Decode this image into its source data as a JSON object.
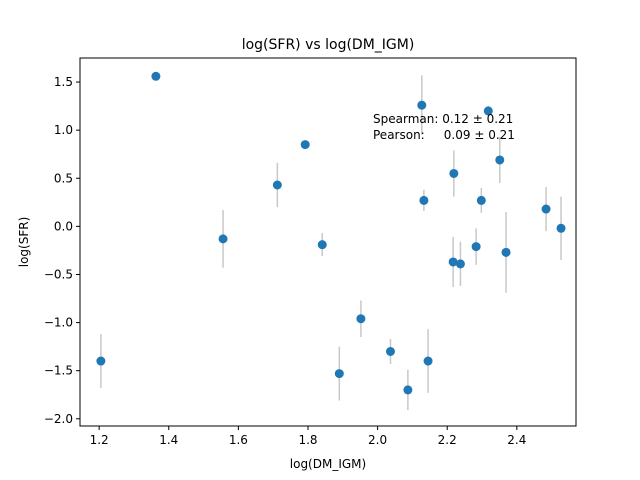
{
  "chart_data": {
    "type": "scatter",
    "title": "log(SFR) vs log(DM_IGM)",
    "xlabel": "log(DM_IGM)",
    "ylabel": "log(SFR)",
    "xlim": [
      1.145,
      2.57
    ],
    "ylim": [
      -2.075,
      1.75
    ],
    "xticks": [
      1.2,
      1.4,
      1.6,
      1.8,
      2.0,
      2.2,
      2.4
    ],
    "xtick_labels": [
      "1.2",
      "1.4",
      "1.6",
      "1.8",
      "2.0",
      "2.2",
      "2.4"
    ],
    "yticks": [
      -2.0,
      -1.5,
      -1.0,
      -0.5,
      0.0,
      0.5,
      1.0,
      1.5
    ],
    "ytick_labels": [
      "−2.0",
      "−1.5",
      "−1.0",
      "−0.5",
      "0.0",
      "0.5",
      "1.0",
      "1.5"
    ],
    "marker_color": "#1f77b4",
    "errorbar_color": "#c8c8c8",
    "points": [
      {
        "x": 1.205,
        "y": -1.4,
        "err": 0.28
      },
      {
        "x": 1.363,
        "y": 1.56,
        "err": 0.0
      },
      {
        "x": 1.556,
        "y": -0.13,
        "err": 0.3
      },
      {
        "x": 1.712,
        "y": 0.43,
        "err": 0.23
      },
      {
        "x": 1.792,
        "y": 0.85,
        "err": 0.0
      },
      {
        "x": 1.841,
        "y": -0.19,
        "err": 0.12
      },
      {
        "x": 1.89,
        "y": -1.53,
        "err": 0.28
      },
      {
        "x": 1.952,
        "y": -0.96,
        "err": 0.19
      },
      {
        "x": 2.037,
        "y": -1.3,
        "err": 0.13
      },
      {
        "x": 2.087,
        "y": -1.7,
        "err": 0.21
      },
      {
        "x": 2.127,
        "y": 1.26,
        "err": 0.31
      },
      {
        "x": 2.133,
        "y": 0.27,
        "err": 0.11
      },
      {
        "x": 2.145,
        "y": -1.4,
        "err": 0.33
      },
      {
        "x": 2.217,
        "y": -0.37,
        "err": 0.26
      },
      {
        "x": 2.219,
        "y": 0.55,
        "err": 0.24
      },
      {
        "x": 2.238,
        "y": -0.39,
        "err": 0.23
      },
      {
        "x": 2.283,
        "y": -0.21,
        "err": 0.19
      },
      {
        "x": 2.298,
        "y": 0.27,
        "err": 0.13
      },
      {
        "x": 2.318,
        "y": 1.2,
        "err": 0.05
      },
      {
        "x": 2.351,
        "y": 0.69,
        "err": 0.24
      },
      {
        "x": 2.369,
        "y": -0.27,
        "err": 0.42
      },
      {
        "x": 2.484,
        "y": 0.18,
        "err": 0.23
      },
      {
        "x": 2.527,
        "y": -0.02,
        "err": 0.33
      }
    ],
    "annotation": {
      "line1": "Spearman: 0.12 ± 0.21",
      "line2": "Pearson:     0.09 ± 0.21"
    }
  }
}
